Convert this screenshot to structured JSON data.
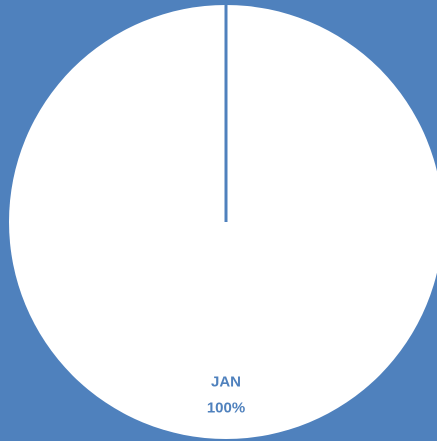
{
  "chart_data": {
    "type": "pie",
    "categories": [
      "JAN"
    ],
    "values": [
      100
    ],
    "value_labels": [
      "100%"
    ],
    "colors": [
      "#ffffff"
    ],
    "background": "#4f81bd",
    "label_color": "#4f81bd"
  }
}
